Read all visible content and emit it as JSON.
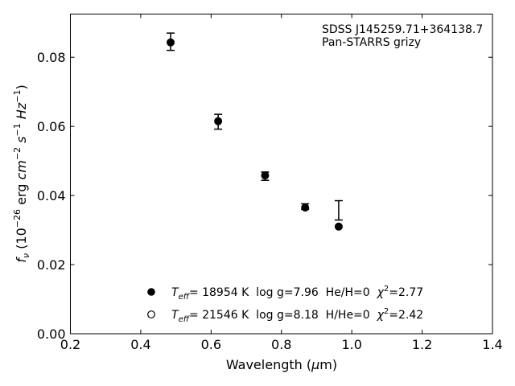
{
  "chart_data": {
    "type": "scatter",
    "xlabel": {
      "prefix": "Wavelength (",
      "mu": "μ",
      "suffix": "m)"
    },
    "ylabel": {
      "f": "f",
      "nu": "ν",
      "open": " (10",
      "exp1": "−26",
      "mid": " erg ",
      "cm": "cm",
      "exp2": "−2",
      "s": " s",
      "exp3": "−1",
      "hz": " Hz",
      "exp4": "−1",
      "close": ")"
    },
    "xlim": [
      0.2,
      1.4
    ],
    "ylim": [
      0.0,
      0.0925
    ],
    "xticks": [
      0.2,
      0.4,
      0.6,
      0.8,
      1.0,
      1.2,
      1.4
    ],
    "xtick_labels": [
      "0.2",
      "0.4",
      "0.6",
      "0.8",
      "1.0",
      "1.2",
      "1.4"
    ],
    "yticks": [
      0.0,
      0.02,
      0.04,
      0.06,
      0.08
    ],
    "ytick_labels": [
      "0.00",
      "0.02",
      "0.04",
      "0.06",
      "0.08"
    ],
    "grid": false,
    "annotation": [
      "SDSS J145259.71+364138.7",
      "Pan-STARRS grizy"
    ],
    "observed": {
      "x": [
        0.4849,
        0.6201,
        0.7535,
        0.8674,
        0.9628
      ],
      "y": [
        0.0845,
        0.063,
        0.0462,
        0.0372,
        0.0357
      ],
      "err_lo": [
        0.0025,
        0.0038,
        0.0018,
        0.0012,
        0.0028
      ],
      "err_hi": [
        0.0025,
        0.0005,
        0.0006,
        0.0004,
        0.0028
      ]
    },
    "series": [
      {
        "name": "Teff= 18954 K  log g=7.96  He/H=0  χ2=2.77",
        "marker": "filled",
        "x": [
          0.4849,
          0.6201,
          0.7535,
          0.8674,
          0.9628
        ],
        "y": [
          0.0843,
          0.0615,
          0.0458,
          0.0365,
          0.031
        ]
      },
      {
        "name": "Teff= 21546 K  log g=8.18  H/He=0  χ2=2.42",
        "marker": "open",
        "x": [],
        "y": []
      }
    ],
    "legend": {
      "placement": "lower-center",
      "entries": [
        {
          "T": "T",
          "eff": "eff",
          "rest": "= 18954 K  log g=7.96  He/H=0  ",
          "chi": "χ",
          "two": "2",
          "val": "=2.77"
        },
        {
          "T": "T",
          "eff": "eff",
          "rest": "= 21546 K  log g=8.18  H/He=0  ",
          "chi": "χ",
          "two": "2",
          "val": "=2.42"
        }
      ]
    },
    "colors": {
      "marker": "#000000",
      "axes": "#000000",
      "background": "#ffffff"
    }
  }
}
